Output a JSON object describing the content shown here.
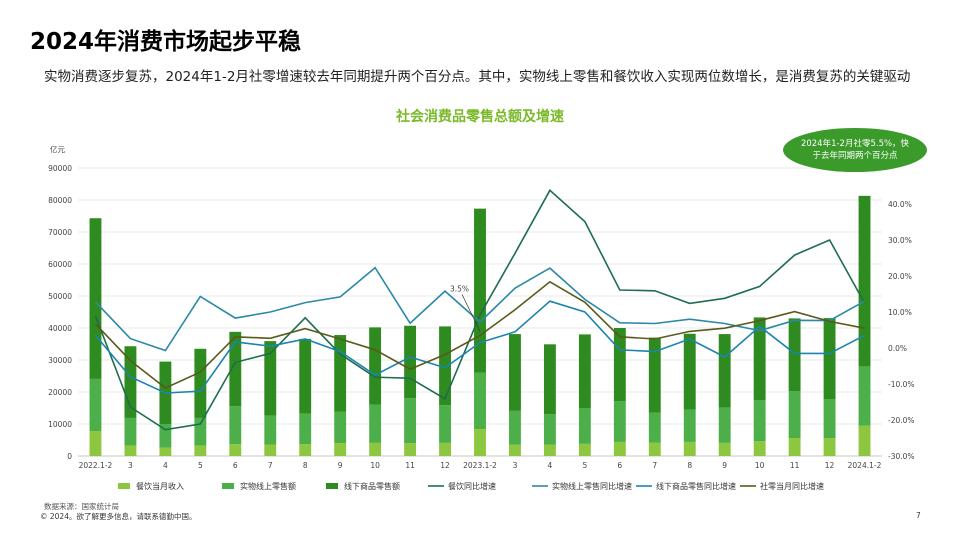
{
  "slide": {
    "title": "2024年消费市场起步平稳",
    "subtitle": "实物消费逐步复苏，2024年1-2月社零增速较去年同期提升两个百分点。其中，实物线上零售和餐饮收入实现两位数增长，是消费复苏的关键驱动",
    "source": "数据来源：国家统计局",
    "copyright": "© 2024。欲了解更多信息，请联系德勤中国。",
    "page": "7"
  },
  "callout_text": "2024年1-2月社零5.5%，快于去年同期两个百分点",
  "colors": {
    "catering_bar": "#8dc63f",
    "online_bar": "#4daf4a",
    "offline_bar": "#2e8b1f",
    "catering_line": "#1e6e4e",
    "online_line": "#2a8aa6",
    "offline_line": "#1d84b0",
    "total_line": "#5a5a1a"
  },
  "chart_data": {
    "type": "bar",
    "title": "社会消费品零售总额及增速",
    "ylabel": "亿元",
    "ylim": [
      0,
      90000
    ],
    "y2lim": [
      -30,
      50
    ],
    "yticks": [
      "0",
      "10000",
      "20000",
      "30000",
      "40000",
      "50000",
      "60000",
      "70000",
      "80000",
      "90000"
    ],
    "y2ticks": [
      "-30.0%",
      "-20.0%",
      "-10.0%",
      "0.0%",
      "10.0%",
      "20.0%",
      "30.0%",
      "40.0%"
    ],
    "categories": [
      "2022.1-2",
      "3",
      "4",
      "5",
      "6",
      "7",
      "8",
      "9",
      "10",
      "11",
      "12",
      "2023.1-2",
      "3",
      "4",
      "5",
      "6",
      "7",
      "8",
      "9",
      "10",
      "11",
      "12",
      "2024.1-2"
    ],
    "bar_series": [
      {
        "name": "餐饮当月收入",
        "key": "catering_bar",
        "values": [
          7800,
          3300,
          2600,
          3300,
          3700,
          3600,
          3700,
          4000,
          4100,
          4000,
          4100,
          8400,
          3600,
          3600,
          3800,
          4400,
          4200,
          4400,
          4100,
          4600,
          5600,
          5600,
          9500
        ]
      },
      {
        "name": "实物线上零售额",
        "key": "online_bar",
        "values": [
          16300,
          8600,
          7400,
          8600,
          11900,
          9000,
          9500,
          9800,
          12000,
          14100,
          11800,
          17600,
          10500,
          9500,
          11200,
          12700,
          9300,
          10100,
          11000,
          12800,
          14600,
          12100,
          18500
        ]
      },
      {
        "name": "线下商品零售额",
        "key": "offline_bar",
        "values": [
          50200,
          22400,
          19500,
          21600,
          23200,
          23300,
          23400,
          24000,
          24100,
          22600,
          24600,
          51300,
          24000,
          21800,
          23000,
          22900,
          23500,
          23700,
          23000,
          25900,
          22800,
          25400,
          53300
        ]
      }
    ],
    "line_series": [
      {
        "name": "餐饮同比增速",
        "key": "catering_line",
        "values": [
          8.9,
          -16.4,
          -22.7,
          -21.1,
          -4.0,
          -1.5,
          8.4,
          -1.7,
          -8.1,
          -8.4,
          -14.1,
          9.2,
          26.3,
          43.8,
          35.1,
          16.1,
          15.9,
          12.4,
          13.8,
          17.1,
          25.8,
          30.0,
          12.5
        ]
      },
      {
        "name": "实物线上零售同比增速",
        "key": "online_line",
        "values": [
          12.8,
          2.6,
          -0.7,
          14.3,
          8.3,
          10.0,
          12.6,
          14.2,
          22.3,
          6.9,
          15.8,
          7.2,
          16.6,
          22.2,
          13.5,
          7.0,
          6.8,
          8.0,
          6.8,
          4.8,
          7.7,
          7.6,
          13.0
        ]
      },
      {
        "name": "线下商品零售同比增速",
        "key": "offline_line",
        "values": [
          3.5,
          -8.0,
          -12.5,
          -12.0,
          1.7,
          0.5,
          2.5,
          -1.0,
          -7.5,
          -2.5,
          -5.5,
          1.5,
          4.5,
          13.0,
          10.0,
          -0.5,
          -1.0,
          2.5,
          -2.5,
          6.0,
          -1.5,
          -1.5,
          3.5
        ]
      },
      {
        "name": "社零当月同比增速",
        "key": "total_line",
        "values": [
          6.7,
          -3.5,
          -11.1,
          -6.7,
          3.1,
          2.7,
          5.4,
          2.5,
          -0.5,
          -5.9,
          -1.8,
          3.5,
          10.6,
          18.4,
          12.7,
          3.1,
          2.5,
          4.6,
          5.5,
          7.6,
          10.1,
          7.4,
          5.5
        ]
      }
    ],
    "annotation": "3.5%",
    "legend_placement": "bottom"
  }
}
